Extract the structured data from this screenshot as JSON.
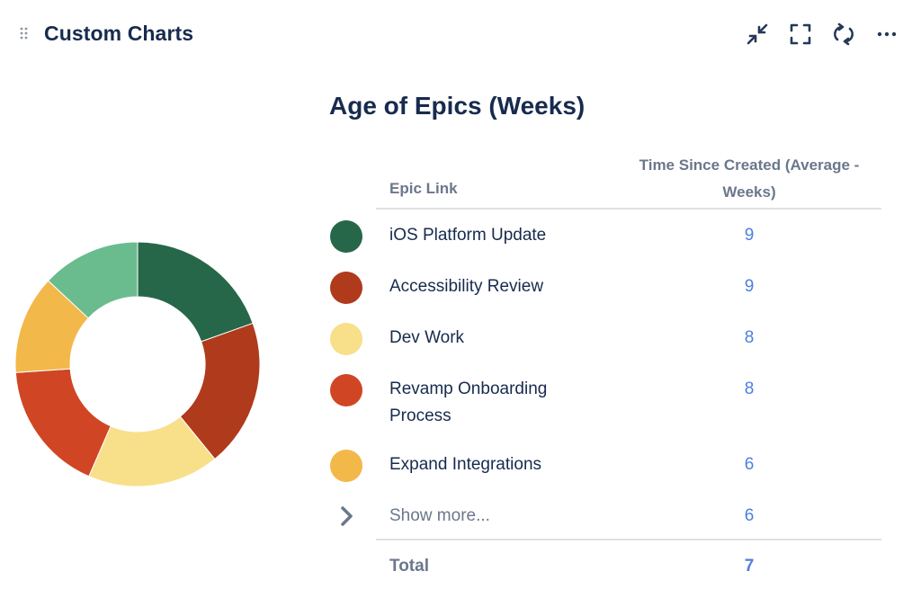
{
  "gadget": {
    "title": "Custom Charts",
    "toolbar": [
      {
        "name": "minimize-icon",
        "label": "Minimize"
      },
      {
        "name": "fullscreen-icon",
        "label": "Full screen"
      },
      {
        "name": "refresh-icon",
        "label": "Refresh"
      },
      {
        "name": "more-icon",
        "label": "More actions"
      }
    ]
  },
  "chart": {
    "title": "Age of Epics (Weeks)",
    "columns": {
      "epic": "Epic Link",
      "time": "Time Since Created (Average - Weeks)"
    },
    "rows": [
      {
        "label": "iOS Platform Update",
        "value": "9",
        "color": "#276749"
      },
      {
        "label": "Accessibility Review",
        "value": "9",
        "color": "#b03a1c"
      },
      {
        "label": "Dev Work",
        "value": "8",
        "color": "#f8df8a"
      },
      {
        "label": "Revamp Onboarding Process",
        "value": "8",
        "color": "#d04624"
      },
      {
        "label": "Expand Integrations",
        "value": "6",
        "color": "#f3b84a"
      }
    ],
    "show_more": {
      "label": "Show more...",
      "value": "6",
      "color": "#6abc8f"
    },
    "total": {
      "label": "Total",
      "value": "7"
    }
  },
  "chart_data": {
    "type": "pie",
    "title": "Age of Epics (Weeks)",
    "categories": [
      "iOS Platform Update",
      "Accessibility Review",
      "Dev Work",
      "Revamp Onboarding Process",
      "Expand Integrations",
      "Show more..."
    ],
    "values": [
      9,
      9,
      8,
      8,
      6,
      6
    ],
    "colors": [
      "#276749",
      "#b03a1c",
      "#f8df8a",
      "#d04624",
      "#f3b84a",
      "#6abc8f"
    ],
    "donut": true
  }
}
